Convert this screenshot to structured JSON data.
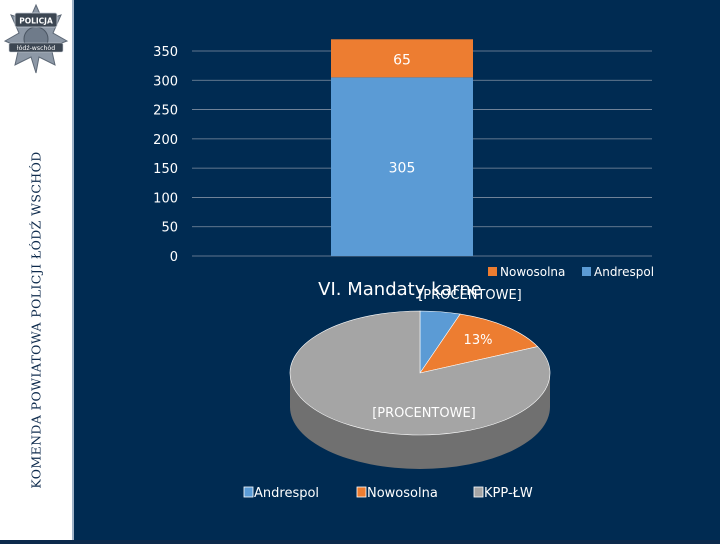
{
  "sidebar": {
    "vertical_title": "KOMENDA POWIATOWA POLICJI ŁÓDŹ WSCHÓD",
    "badge": {
      "top_text": "POLICJA",
      "bottom_text": "łódź-wschód",
      "icon": "police-star-badge"
    }
  },
  "colors": {
    "andrespol": "#5b9bd5",
    "nowosolna": "#ed7d31",
    "kpp": "#a5a5a5",
    "background": "#002b52",
    "axis_text": "#ffffff"
  },
  "chart_data": [
    {
      "type": "bar",
      "stacked": true,
      "categories": [
        ""
      ],
      "series": [
        {
          "name": "Andrespol",
          "values": [
            305
          ],
          "label": "305"
        },
        {
          "name": "Nowosolna",
          "values": [
            65
          ],
          "label": "65"
        }
      ],
      "ylim": [
        0,
        350
      ],
      "yticks": [
        "0",
        "50",
        "100",
        "150",
        "200",
        "250",
        "300",
        "350"
      ],
      "grid": true
    },
    {
      "type": "pie",
      "title": "VI. Mandaty karne",
      "slices": [
        {
          "name": "Andrespol",
          "value": 5,
          "label": "[PROCENTOWE]"
        },
        {
          "name": "Nowosolna",
          "value": 13,
          "label": "13%"
        },
        {
          "name": "KPP-ŁW",
          "value": 82,
          "label": "[PROCENTOWE]"
        }
      ],
      "legend_top": [
        "Nowosolna",
        "Andrespol"
      ],
      "legend_bottom": [
        "Andrespol",
        "Nowosolna",
        "KPP-ŁW"
      ]
    }
  ]
}
